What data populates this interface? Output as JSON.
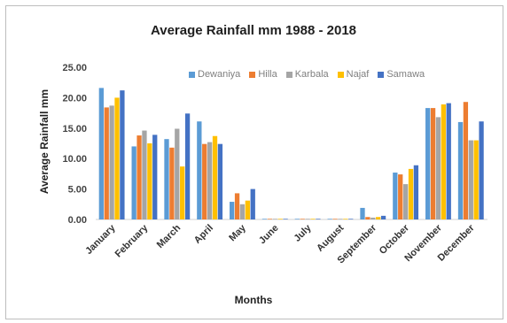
{
  "chart_data": {
    "type": "bar",
    "title": "Average Rainfall mm 1988 - 2018",
    "xlabel": "Months",
    "ylabel": "Average Rainfall mm",
    "ylim": [
      0,
      25
    ],
    "yticks": [
      "0.00",
      "5.00",
      "10.00",
      "15.00",
      "20.00",
      "25.00"
    ],
    "grid": false,
    "legend_position": "top-right",
    "categories": [
      "January",
      "February",
      "March",
      "April",
      "May",
      "June",
      "July",
      "August",
      "September",
      "October",
      "November",
      "December"
    ],
    "series": [
      {
        "name": "Dewaniya",
        "color": "#5b9bd5",
        "values": [
          21.6,
          12.0,
          13.2,
          16.1,
          2.9,
          0.1,
          0.1,
          0.1,
          1.9,
          7.7,
          18.3,
          16.0
        ]
      },
      {
        "name": "Hilla",
        "color": "#ed7d31",
        "values": [
          18.4,
          13.8,
          11.8,
          12.4,
          4.3,
          0.1,
          0.1,
          0.1,
          0.4,
          7.4,
          18.3,
          19.3
        ]
      },
      {
        "name": "Karbala",
        "color": "#a5a5a5",
        "values": [
          18.7,
          14.6,
          14.9,
          12.7,
          2.5,
          0.1,
          0.1,
          0.1,
          0.3,
          5.8,
          16.8,
          13.0
        ]
      },
      {
        "name": "Najaf",
        "color": "#ffc000",
        "values": [
          20.0,
          12.5,
          8.7,
          13.7,
          3.1,
          0.1,
          0.1,
          0.1,
          0.4,
          8.3,
          18.9,
          13.0
        ]
      },
      {
        "name": "Samawa",
        "color": "#4472c4",
        "values": [
          21.2,
          13.9,
          17.4,
          12.4,
          5.0,
          0.1,
          0.1,
          0.1,
          0.6,
          8.9,
          19.1,
          16.1
        ]
      }
    ]
  }
}
